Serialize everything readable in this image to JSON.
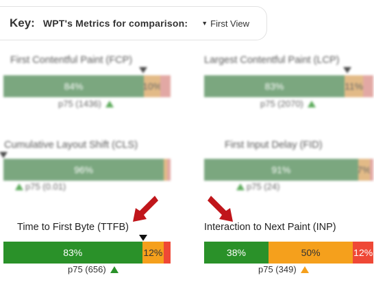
{
  "key": {
    "label": "Key:",
    "title": "WPT's Metrics for comparison:",
    "select_value": "First View"
  },
  "metrics": {
    "fcp": {
      "title": "First Contentful Paint (FCP)",
      "good_label": "84%",
      "ni_label": "10%",
      "p75": "p75 (1436)",
      "good": 84,
      "ni": 10,
      "poor": 6
    },
    "lcp": {
      "title": "Largest Contentful Paint (LCP)",
      "good_label": "83%",
      "ni_label": "11%",
      "p75": "p75 (2070)",
      "good": 83,
      "ni": 11,
      "poor": 6
    },
    "cls": {
      "title": "Cumulative Layout Shift (CLS)",
      "good_label": "96%",
      "p75": "p75 (0.01)",
      "good": 96,
      "ni": 2,
      "poor": 2
    },
    "fid": {
      "title": "First Input Delay (FID)",
      "good_label": "91%",
      "ni_label": "7%",
      "p75": "p75 (24)",
      "good": 91,
      "ni": 7,
      "poor": 2
    },
    "ttfb": {
      "title": "Time to First Byte (TTFB)",
      "good_label": "83%",
      "ni_label": "12%",
      "p75": "p75 (656)",
      "good": 83,
      "ni": 12,
      "poor": 5
    },
    "inp": {
      "title": "Interaction to Next Paint (INP)",
      "good_label": "38%",
      "ni_label": "50%",
      "poor_label": "12%",
      "p75": "p75 (349)",
      "good": 38,
      "ni": 50,
      "poor": 12
    }
  },
  "colors": {
    "good": "#2a9129",
    "needs_improvement": "#f5a01c",
    "poor": "#ef4836",
    "annotation_arrow": "#c0161b"
  },
  "icons": [
    "chevron-down-icon",
    "p75-marker-icon",
    "annotation-arrow-icon"
  ]
}
